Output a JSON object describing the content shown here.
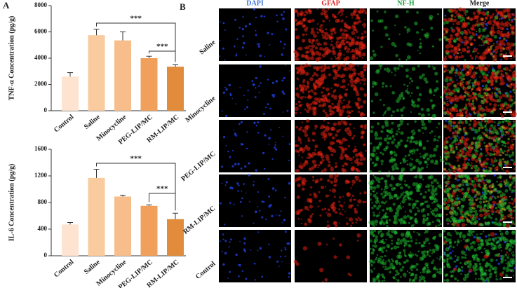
{
  "panel_labels": [
    "A",
    "B"
  ],
  "chart_data": [
    {
      "type": "bar",
      "ylabel": "TNF-α Concentration (pg/g)",
      "categories": [
        "Control",
        "Saline",
        "Minocycline",
        "PEG-LIP/MC",
        "RM-LIP/MC"
      ],
      "values": [
        2600,
        5750,
        5350,
        4000,
        3350
      ],
      "errors": [
        300,
        450,
        650,
        150,
        150
      ],
      "colors": [
        "#fde3d0",
        "#f9cb9e",
        "#f7be8c",
        "#f0a05a",
        "#e08c3c"
      ],
      "ylim": [
        0,
        8000
      ],
      "yticks": [
        0,
        2000,
        4000,
        6000,
        8000
      ],
      "annotations": [
        "***",
        "***"
      ]
    },
    {
      "type": "bar",
      "ylabel": "IL-6 Concentration (pg/g)",
      "categories": [
        "Control",
        "Saline",
        "Minocycline",
        "PEG-LIP/MC",
        "RM-LIP/MC"
      ],
      "values": [
        470,
        1170,
        890,
        750,
        550
      ],
      "errors": [
        30,
        130,
        20,
        15,
        90
      ],
      "colors": [
        "#fde3d0",
        "#f9cb9e",
        "#f7be8c",
        "#f0a05a",
        "#e08c3c"
      ],
      "ylim": [
        0,
        1600
      ],
      "yticks": [
        0,
        400,
        800,
        1200,
        1600
      ],
      "annotations": [
        "***",
        "***"
      ]
    }
  ],
  "panel_b": {
    "columns": [
      "DAPI",
      "GFAP",
      "NF-H",
      "Merge"
    ],
    "rows": [
      "Saline",
      "Minocycline",
      "PEG-LIP/MC",
      "RM-LIP/MC",
      "Control"
    ]
  }
}
